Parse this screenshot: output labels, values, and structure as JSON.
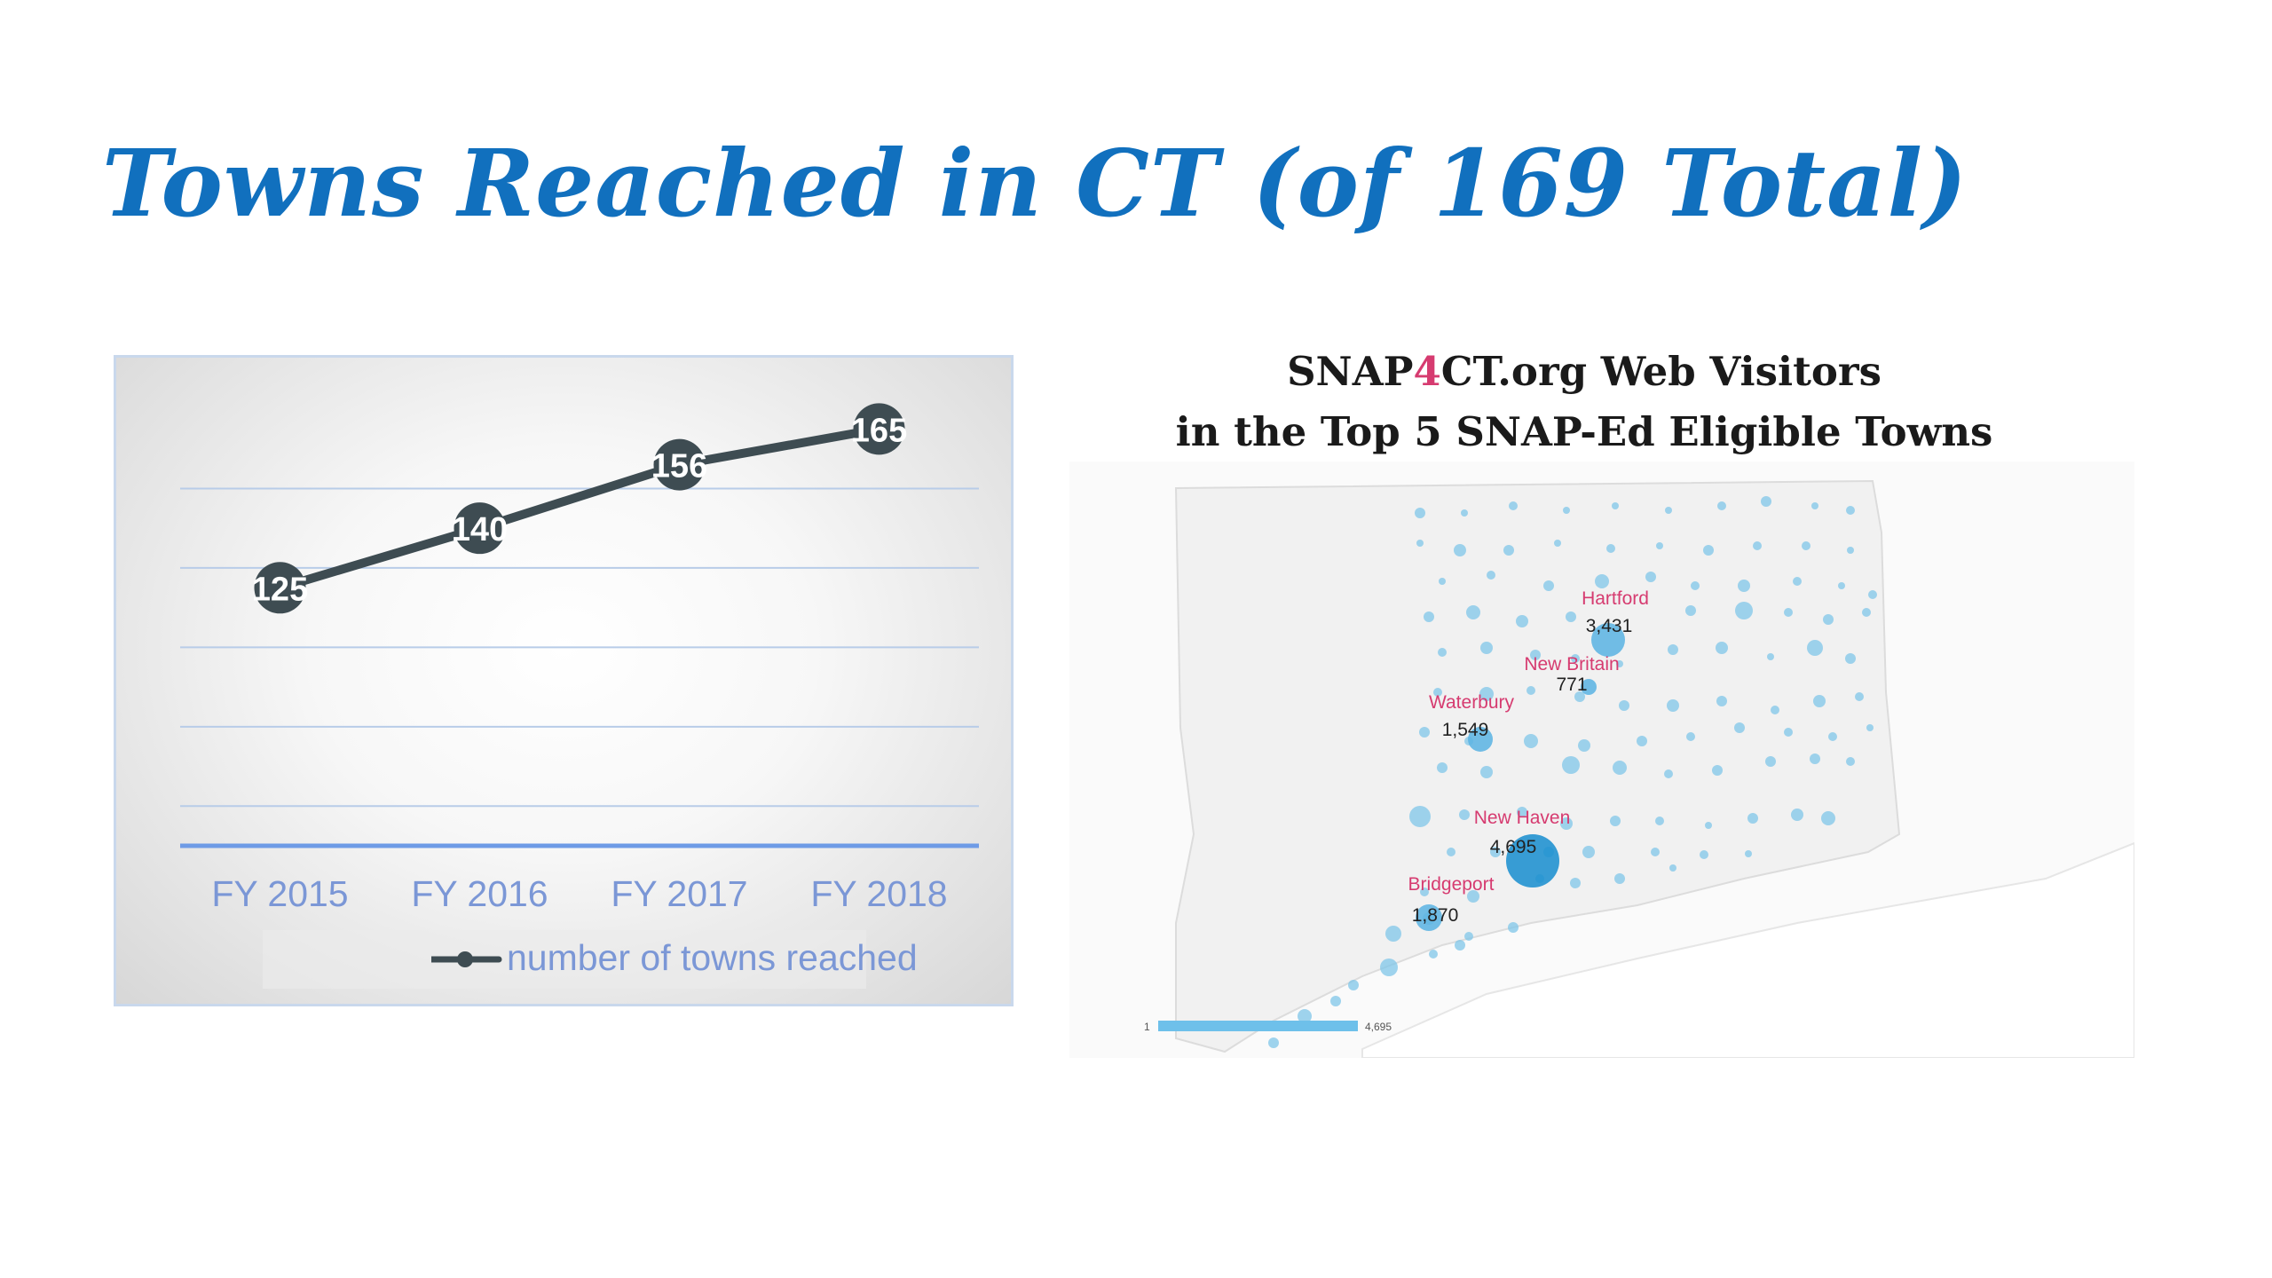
{
  "slide": {
    "title": "Towns Reached in CT (of 169 Total)"
  },
  "chart_data": {
    "type": "line",
    "categories": [
      "FY 2015",
      "FY 2016",
      "FY 2017",
      "FY 2018"
    ],
    "series": [
      {
        "name": "number of towns reached",
        "values": [
          125,
          140,
          156,
          165
        ]
      }
    ],
    "ylim": [
      60,
      170
    ],
    "grid": true,
    "legend": "bottom",
    "data_labels": true,
    "colors": {
      "line": "#3e4c52",
      "axis_labels": "#7b97d6",
      "grid": "#b8cce8",
      "axis": "#6e9be6"
    }
  },
  "map": {
    "title_line1_pre": "SNAP",
    "title_line1_accent": "4",
    "title_line1_post": "CT.org Web Visitors",
    "title_line2": "in the Top 5 SNAP-Ed Eligible Towns",
    "towns": [
      {
        "name": "Hartford",
        "value": "3,431"
      },
      {
        "name": "New Britain",
        "value": "771"
      },
      {
        "name": "Waterbury",
        "value": "1,549"
      },
      {
        "name": "New Haven",
        "value": "4,695"
      },
      {
        "name": "Bridgeport",
        "value": "1,870"
      }
    ],
    "scale": {
      "min": "1",
      "max": "4,695"
    },
    "colors": {
      "label": "#d63b70",
      "bubble": "#7fc6e8",
      "bubble_large": "#1c8fcf",
      "land": "#f1f1f1",
      "border": "#dcdcdc"
    }
  }
}
